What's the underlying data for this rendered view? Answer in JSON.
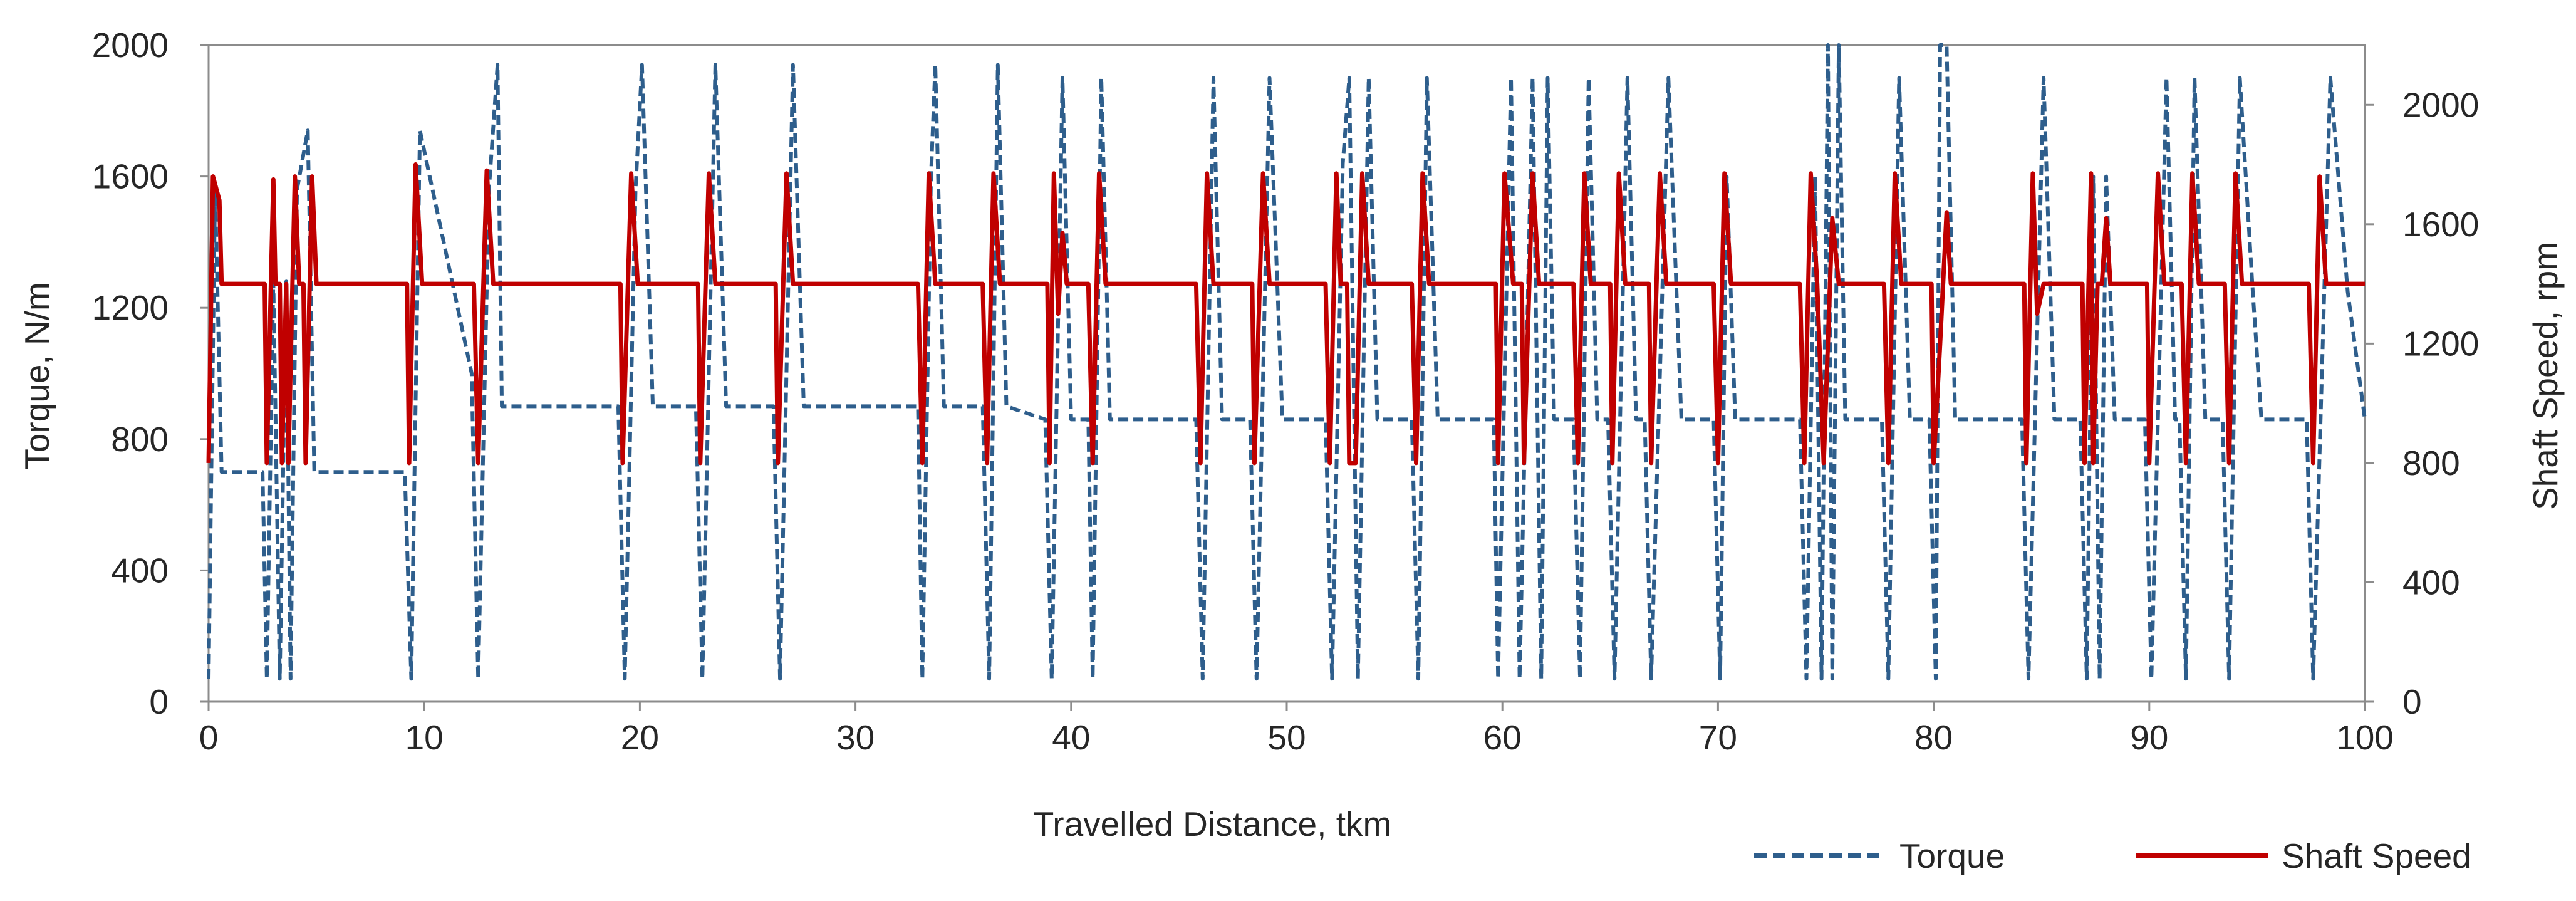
{
  "chart_data": {
    "type": "line",
    "xlabel": "Travelled Distance, tkm",
    "ylabel_left": "Torque,  N/m",
    "ylabel_right": "Shaft Speed,  rpm",
    "xlim": [
      0,
      100
    ],
    "ylim_left": [
      0,
      2000
    ],
    "ylim_right": [
      0,
      2200
    ],
    "x_ticks": [
      0,
      10,
      20,
      30,
      40,
      50,
      60,
      70,
      80,
      90,
      100
    ],
    "y_ticks_left": [
      0,
      400,
      800,
      1200,
      1600,
      2000
    ],
    "y_ticks_right": [
      0,
      400,
      800,
      1200,
      1600,
      2000
    ],
    "grid": false,
    "legend_position": "bottom-right",
    "colors": {
      "torque": "#2e5e8c",
      "shaft_speed": "#c00000",
      "axis": "#8c8c8c"
    },
    "series": [
      {
        "name": "Torque",
        "axis": "left",
        "style": "dashed",
        "points": [
          [
            0,
            70
          ],
          [
            0.3,
            1560
          ],
          [
            0.5,
            1000
          ],
          [
            0.6,
            700
          ],
          [
            2.5,
            700
          ],
          [
            2.7,
            70
          ],
          [
            3.0,
            1280
          ],
          [
            3.3,
            70
          ],
          [
            3.6,
            1280
          ],
          [
            3.8,
            70
          ],
          [
            4.1,
            1560
          ],
          [
            4.6,
            1740
          ],
          [
            4.9,
            700
          ],
          [
            9.1,
            700
          ],
          [
            9.4,
            70
          ],
          [
            9.8,
            1740
          ],
          [
            12.2,
            1000
          ],
          [
            12.5,
            70
          ],
          [
            13.0,
            1560
          ],
          [
            13.4,
            1940
          ],
          [
            13.6,
            900
          ],
          [
            19.0,
            900
          ],
          [
            19.3,
            70
          ],
          [
            19.8,
            1560
          ],
          [
            20.1,
            1940
          ],
          [
            20.6,
            900
          ],
          [
            22.6,
            900
          ],
          [
            22.9,
            70
          ],
          [
            23.5,
            1940
          ],
          [
            24.0,
            900
          ],
          [
            26.2,
            900
          ],
          [
            26.5,
            70
          ],
          [
            27.1,
            1940
          ],
          [
            27.6,
            900
          ],
          [
            32.9,
            900
          ],
          [
            33.1,
            70
          ],
          [
            33.5,
            1600
          ],
          [
            33.7,
            1940
          ],
          [
            34.1,
            900
          ],
          [
            35.9,
            900
          ],
          [
            36.2,
            70
          ],
          [
            36.6,
            1940
          ],
          [
            37.0,
            900
          ],
          [
            38.8,
            860
          ],
          [
            39.1,
            70
          ],
          [
            39.6,
            1900
          ],
          [
            40.0,
            860
          ],
          [
            40.8,
            860
          ],
          [
            41.0,
            70
          ],
          [
            41.4,
            1900
          ],
          [
            41.8,
            860
          ],
          [
            45.8,
            860
          ],
          [
            46.1,
            70
          ],
          [
            46.6,
            1900
          ],
          [
            47.0,
            860
          ],
          [
            48.3,
            860
          ],
          [
            48.6,
            70
          ],
          [
            49.2,
            1900
          ],
          [
            49.8,
            860
          ],
          [
            51.8,
            860
          ],
          [
            52.1,
            70
          ],
          [
            52.6,
            1640
          ],
          [
            52.9,
            1900
          ],
          [
            53.3,
            70
          ],
          [
            53.8,
            1900
          ],
          [
            54.2,
            860
          ],
          [
            55.8,
            860
          ],
          [
            56.1,
            70
          ],
          [
            56.5,
            1900
          ],
          [
            57.0,
            860
          ],
          [
            59.6,
            860
          ],
          [
            59.8,
            70
          ],
          [
            60.4,
            1900
          ],
          [
            60.8,
            70
          ],
          [
            61.4,
            1900
          ],
          [
            61.8,
            70
          ],
          [
            62.1,
            1900
          ],
          [
            62.4,
            860
          ],
          [
            63.3,
            860
          ],
          [
            63.6,
            70
          ],
          [
            64.0,
            1900
          ],
          [
            64.4,
            860
          ],
          [
            64.9,
            860
          ],
          [
            65.2,
            70
          ],
          [
            65.8,
            1900
          ],
          [
            66.2,
            860
          ],
          [
            66.6,
            860
          ],
          [
            66.9,
            70
          ],
          [
            67.7,
            1900
          ],
          [
            68.3,
            860
          ],
          [
            69.8,
            860
          ],
          [
            70.1,
            70
          ],
          [
            70.4,
            1600
          ],
          [
            70.8,
            860
          ],
          [
            73.8,
            860
          ],
          [
            74.1,
            70
          ],
          [
            74.5,
            1600
          ],
          [
            74.8,
            70
          ],
          [
            75.1,
            2000
          ],
          [
            75.3,
            70
          ],
          [
            75.6,
            2000
          ],
          [
            75.9,
            860
          ],
          [
            77.6,
            860
          ],
          [
            77.9,
            70
          ],
          [
            78.4,
            1900
          ],
          [
            78.9,
            860
          ],
          [
            79.8,
            860
          ],
          [
            80.1,
            70
          ],
          [
            80.3,
            2000
          ],
          [
            80.6,
            2000
          ],
          [
            81.0,
            860
          ],
          [
            84.1,
            860
          ],
          [
            84.4,
            70
          ],
          [
            85.1,
            1900
          ],
          [
            85.6,
            860
          ],
          [
            86.8,
            860
          ],
          [
            87.1,
            70
          ],
          [
            87.4,
            1600
          ],
          [
            87.7,
            70
          ],
          [
            88.0,
            1600
          ],
          [
            88.4,
            860
          ],
          [
            89.8,
            860
          ],
          [
            90.1,
            70
          ],
          [
            90.8,
            1900
          ],
          [
            91.2,
            860
          ],
          [
            91.4,
            860
          ],
          [
            91.7,
            70
          ],
          [
            92.1,
            1900
          ],
          [
            92.6,
            860
          ],
          [
            93.4,
            860
          ],
          [
            93.7,
            70
          ],
          [
            94.2,
            1900
          ],
          [
            94.8,
            1250
          ],
          [
            95.2,
            860
          ],
          [
            96.9,
            860
          ],
          [
            97.3,
            860
          ],
          [
            97.6,
            70
          ],
          [
            98.4,
            1900
          ],
          [
            99.2,
            1250
          ],
          [
            100,
            860
          ]
        ]
      },
      {
        "name": "Shaft Speed",
        "axis": "right",
        "style": "solid",
        "points": [
          [
            0,
            800
          ],
          [
            0.2,
            1760
          ],
          [
            0.5,
            1680
          ],
          [
            0.6,
            1400
          ],
          [
            2.6,
            1400
          ],
          [
            2.7,
            800
          ],
          [
            3.0,
            1750
          ],
          [
            3.1,
            1400
          ],
          [
            3.3,
            1400
          ],
          [
            3.4,
            800
          ],
          [
            3.6,
            1400
          ],
          [
            3.7,
            800
          ],
          [
            4.0,
            1760
          ],
          [
            4.2,
            1400
          ],
          [
            4.4,
            1400
          ],
          [
            4.5,
            800
          ],
          [
            4.8,
            1760
          ],
          [
            5.0,
            1400
          ],
          [
            9.2,
            1400
          ],
          [
            9.3,
            800
          ],
          [
            9.6,
            1800
          ],
          [
            9.9,
            1400
          ],
          [
            12.3,
            1400
          ],
          [
            12.5,
            800
          ],
          [
            12.9,
            1780
          ],
          [
            13.2,
            1400
          ],
          [
            19.1,
            1400
          ],
          [
            19.2,
            800
          ],
          [
            19.6,
            1770
          ],
          [
            19.9,
            1400
          ],
          [
            22.7,
            1400
          ],
          [
            22.8,
            800
          ],
          [
            23.2,
            1770
          ],
          [
            23.5,
            1400
          ],
          [
            26.3,
            1400
          ],
          [
            26.4,
            800
          ],
          [
            26.8,
            1770
          ],
          [
            27.1,
            1400
          ],
          [
            32.9,
            1400
          ],
          [
            33.1,
            800
          ],
          [
            33.4,
            1770
          ],
          [
            33.7,
            1400
          ],
          [
            35.9,
            1400
          ],
          [
            36.1,
            800
          ],
          [
            36.4,
            1770
          ],
          [
            36.7,
            1400
          ],
          [
            38.9,
            1400
          ],
          [
            39.0,
            800
          ],
          [
            39.2,
            1770
          ],
          [
            39.4,
            1300
          ],
          [
            39.6,
            1570
          ],
          [
            39.8,
            1400
          ],
          [
            40.8,
            1400
          ],
          [
            41.0,
            800
          ],
          [
            41.3,
            1770
          ],
          [
            41.6,
            1400
          ],
          [
            45.8,
            1400
          ],
          [
            46.0,
            800
          ],
          [
            46.3,
            1770
          ],
          [
            46.6,
            1400
          ],
          [
            48.4,
            1400
          ],
          [
            48.5,
            800
          ],
          [
            48.9,
            1770
          ],
          [
            49.2,
            1400
          ],
          [
            51.8,
            1400
          ],
          [
            52.0,
            800
          ],
          [
            52.3,
            1770
          ],
          [
            52.5,
            1400
          ],
          [
            52.8,
            1400
          ],
          [
            52.9,
            800
          ],
          [
            53.2,
            800
          ],
          [
            53.5,
            1770
          ],
          [
            53.8,
            1400
          ],
          [
            55.8,
            1400
          ],
          [
            56.0,
            800
          ],
          [
            56.3,
            1770
          ],
          [
            56.6,
            1400
          ],
          [
            59.7,
            1400
          ],
          [
            59.8,
            800
          ],
          [
            60.1,
            1770
          ],
          [
            60.5,
            1400
          ],
          [
            60.9,
            1400
          ],
          [
            61.0,
            800
          ],
          [
            61.4,
            1770
          ],
          [
            61.7,
            1400
          ],
          [
            63.3,
            1400
          ],
          [
            63.5,
            800
          ],
          [
            63.8,
            1770
          ],
          [
            64.1,
            1400
          ],
          [
            65.0,
            1400
          ],
          [
            65.1,
            800
          ],
          [
            65.4,
            1770
          ],
          [
            65.7,
            1400
          ],
          [
            66.8,
            1400
          ],
          [
            66.9,
            800
          ],
          [
            67.3,
            1770
          ],
          [
            67.6,
            1400
          ],
          [
            69.8,
            1400
          ],
          [
            70.0,
            800
          ],
          [
            70.3,
            1770
          ],
          [
            70.6,
            1400
          ],
          [
            73.8,
            1400
          ],
          [
            74.0,
            800
          ],
          [
            74.3,
            1770
          ],
          [
            74.6,
            1400
          ],
          [
            74.9,
            800
          ],
          [
            75.3,
            1620
          ],
          [
            75.6,
            1400
          ],
          [
            77.7,
            1400
          ],
          [
            77.9,
            800
          ],
          [
            78.2,
            1770
          ],
          [
            78.5,
            1400
          ],
          [
            79.9,
            1400
          ],
          [
            80.0,
            800
          ],
          [
            80.3,
            1200
          ],
          [
            80.6,
            1640
          ],
          [
            80.8,
            1400
          ],
          [
            84.2,
            1400
          ],
          [
            84.3,
            800
          ],
          [
            84.6,
            1770
          ],
          [
            84.8,
            1300
          ],
          [
            85.1,
            1400
          ],
          [
            86.9,
            1400
          ],
          [
            87.0,
            800
          ],
          [
            87.3,
            1770
          ],
          [
            87.4,
            800
          ],
          [
            87.6,
            1400
          ],
          [
            87.8,
            1400
          ],
          [
            88.0,
            1620
          ],
          [
            88.2,
            1400
          ],
          [
            89.9,
            1400
          ],
          [
            90.0,
            800
          ],
          [
            90.4,
            1770
          ],
          [
            90.7,
            1400
          ],
          [
            91.5,
            1400
          ],
          [
            91.7,
            800
          ],
          [
            92.0,
            1770
          ],
          [
            92.3,
            1400
          ],
          [
            93.5,
            1400
          ],
          [
            93.7,
            800
          ],
          [
            94.0,
            1770
          ],
          [
            94.3,
            1400
          ],
          [
            97.4,
            1400
          ],
          [
            97.6,
            800
          ],
          [
            97.9,
            1760
          ],
          [
            98.2,
            1400
          ],
          [
            100,
            1400
          ]
        ]
      }
    ]
  }
}
